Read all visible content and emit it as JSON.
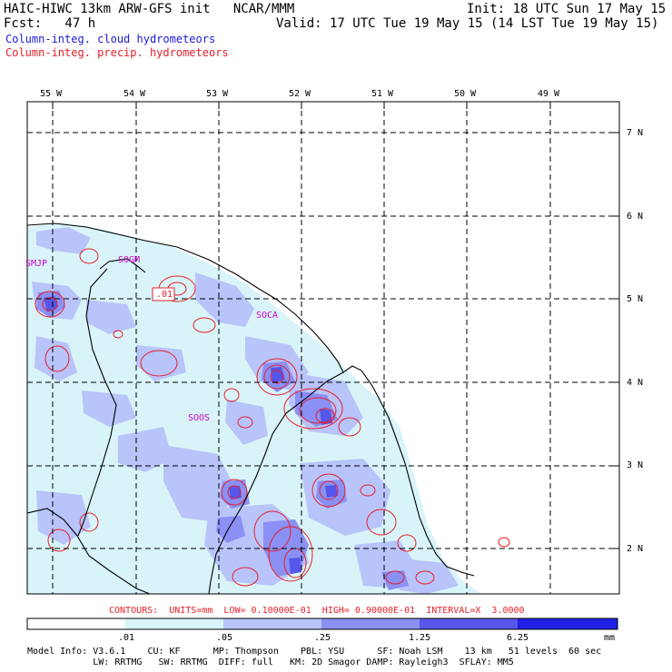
{
  "header": {
    "left_line1": "HAIC-HIWC 13km ARW-GFS init   NCAR/MMM",
    "left_line2": "Fcst:   47 h",
    "right_line1": "Init: 18 UTC Sun 17 May 15",
    "right_line2": "Valid: 17 UTC Tue 19 May 15 (14 LST Tue 19 May 15)",
    "legend_cloud": "Column-integ. cloud hydrometeors",
    "legend_precip": "Column-integ. precip. hydrometeors",
    "legend_cloud_color": "#1a1ad6",
    "legend_precip_color": "#e8202a"
  },
  "map": {
    "lon_labels": [
      "55 W",
      "54 W",
      "53 W",
      "52 W",
      "51 W",
      "50 W",
      "49 W"
    ],
    "lat_labels": [
      "7 N",
      "6 N",
      "5 N",
      "4 N",
      "3 N",
      "2 N"
    ],
    "station_labels": [
      "SMJP",
      "SOGM",
      "SOCA",
      "SOOS"
    ],
    "contour_label": ".01",
    "station_color": "#d000d0",
    "precip_contour_color": "#e8202a"
  },
  "colorbar": {
    "contour_info": "CONTOURS:  UNITS=mm  LOW= 0.10000E-01  HIGH= 0.90000E-01  INTERVAL=X  3.0000",
    "tick_labels": [
      ".01",
      ".05",
      ".25",
      "1.25",
      "6.25"
    ],
    "units": "mm",
    "colors": [
      "#ffffff",
      "#d8f4f8",
      "#b8c4fa",
      "#8a90f4",
      "#5656ea",
      "#2020e6"
    ]
  },
  "footer": {
    "line1": "Model Info: V3.6.1    CU: KF      MP: Thompson    PBL: YSU      SF: Noah LSM    13 km   51 levels  60 sec",
    "line2": "            LW: RRTMG   SW: RRTMG  DIFF: full   KM: 2D Smagor DAMP: Rayleigh3  SFLAY: MM5"
  }
}
